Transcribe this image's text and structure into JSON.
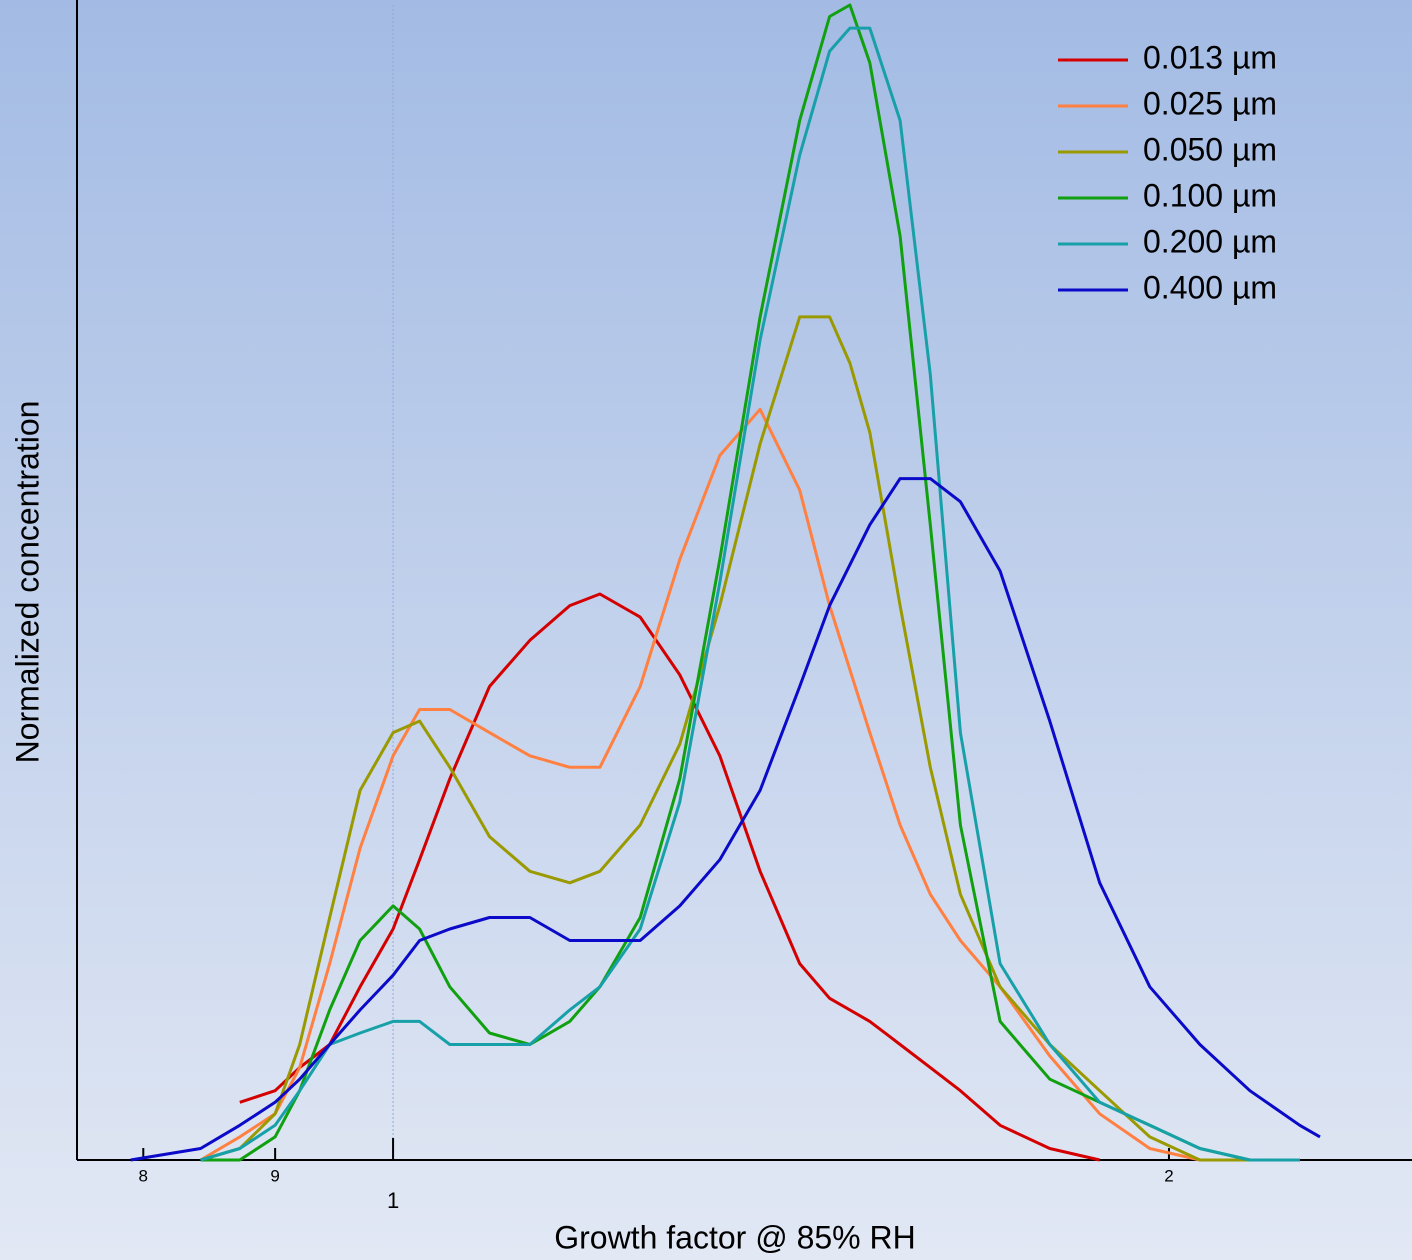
{
  "chart_data": {
    "type": "line",
    "x_label": "Growth factor @ 85% RH",
    "y_label": "Normalized concentration",
    "x_scale": "log",
    "xlim": [
      0.754,
      2.485
    ],
    "ylim": [
      0,
      1
    ],
    "xticks": [
      {
        "value": 0.8,
        "label": "8"
      },
      {
        "value": 0.9,
        "label": "9"
      },
      1,
      2
    ],
    "legend": "upper right",
    "series": [
      {
        "name": "0.013 µm",
        "color": "#d40000",
        "x": [
          0.872,
          0.9,
          0.92,
          0.945,
          0.971,
          1.0,
          1.024,
          1.052,
          1.09,
          1.13,
          1.171,
          1.203,
          1.247,
          1.292,
          1.339,
          1.388,
          1.438,
          1.477,
          1.531,
          1.573,
          1.616,
          1.66,
          1.72,
          1.798,
          1.88
        ],
        "values": [
          0.05,
          0.06,
          0.08,
          0.1,
          0.15,
          0.2,
          0.26,
          0.33,
          0.41,
          0.45,
          0.48,
          0.49,
          0.47,
          0.42,
          0.35,
          0.25,
          0.17,
          0.14,
          0.12,
          0.1,
          0.08,
          0.06,
          0.03,
          0.01,
          0
        ]
      },
      {
        "name": "0.025 µm",
        "color": "#ff8040",
        "x": [
          0.842,
          0.872,
          0.9,
          0.92,
          0.945,
          0.971,
          1.0,
          1.024,
          1.052,
          1.09,
          1.13,
          1.171,
          1.203,
          1.247,
          1.292,
          1.339,
          1.388,
          1.438,
          1.477,
          1.531,
          1.573,
          1.616,
          1.66,
          1.72,
          1.798,
          1.88,
          1.966,
          2.056
        ],
        "values": [
          0,
          0.02,
          0.04,
          0.08,
          0.17,
          0.27,
          0.35,
          0.39,
          0.39,
          0.37,
          0.35,
          0.34,
          0.34,
          0.41,
          0.52,
          0.61,
          0.65,
          0.58,
          0.48,
          0.37,
          0.29,
          0.23,
          0.19,
          0.15,
          0.09,
          0.04,
          0.01,
          0
        ]
      },
      {
        "name": "0.050 µm",
        "color": "#9a9a00",
        "x": [
          0.842,
          0.872,
          0.9,
          0.92,
          0.945,
          0.971,
          1.0,
          1.024,
          1.052,
          1.09,
          1.13,
          1.171,
          1.203,
          1.247,
          1.292,
          1.339,
          1.388,
          1.438,
          1.477,
          1.504,
          1.531,
          1.573,
          1.616,
          1.66,
          1.72,
          1.798,
          1.88,
          1.966,
          2.056,
          2.15
        ],
        "values": [
          0,
          0.01,
          0.04,
          0.1,
          0.21,
          0.32,
          0.37,
          0.38,
          0.34,
          0.28,
          0.25,
          0.24,
          0.25,
          0.29,
          0.36,
          0.48,
          0.62,
          0.73,
          0.73,
          0.69,
          0.63,
          0.48,
          0.34,
          0.23,
          0.15,
          0.1,
          0.06,
          0.02,
          0.0,
          0
        ]
      },
      {
        "name": "0.100 µm",
        "color": "#10a010",
        "x": [
          0.842,
          0.872,
          0.9,
          0.92,
          0.945,
          0.971,
          1.0,
          1.024,
          1.052,
          1.09,
          1.13,
          1.171,
          1.203,
          1.247,
          1.292,
          1.339,
          1.388,
          1.438,
          1.477,
          1.504,
          1.531,
          1.573,
          1.616,
          1.66,
          1.72,
          1.798,
          1.88,
          1.966,
          2.056,
          2.15,
          2.248
        ],
        "values": [
          0,
          0.0,
          0.02,
          0.06,
          0.13,
          0.19,
          0.22,
          0.2,
          0.15,
          0.11,
          0.1,
          0.12,
          0.15,
          0.21,
          0.33,
          0.52,
          0.73,
          0.9,
          0.99,
          1.0,
          0.95,
          0.8,
          0.55,
          0.29,
          0.12,
          0.07,
          0.05,
          0.03,
          0.01,
          0,
          0
        ]
      },
      {
        "name": "0.200 µm",
        "color": "#18a0a8",
        "x": [
          0.842,
          0.872,
          0.9,
          0.92,
          0.945,
          0.971,
          1.0,
          1.024,
          1.052,
          1.09,
          1.13,
          1.171,
          1.203,
          1.247,
          1.292,
          1.339,
          1.388,
          1.438,
          1.477,
          1.504,
          1.531,
          1.573,
          1.616,
          1.66,
          1.72,
          1.798,
          1.88,
          1.966,
          2.056,
          2.15,
          2.248
        ],
        "values": [
          0,
          0.01,
          0.03,
          0.06,
          0.1,
          0.11,
          0.12,
          0.12,
          0.1,
          0.1,
          0.1,
          0.13,
          0.15,
          0.2,
          0.31,
          0.5,
          0.71,
          0.87,
          0.96,
          0.98,
          0.98,
          0.9,
          0.68,
          0.37,
          0.17,
          0.1,
          0.05,
          0.03,
          0.01,
          0,
          0
        ]
      },
      {
        "name": "0.400 µm",
        "color": "#0a0ac8",
        "x": [
          0.791,
          0.842,
          0.872,
          0.9,
          0.92,
          0.945,
          0.971,
          1.0,
          1.024,
          1.052,
          1.09,
          1.13,
          1.171,
          1.203,
          1.247,
          1.292,
          1.339,
          1.388,
          1.438,
          1.477,
          1.531,
          1.573,
          1.616,
          1.66,
          1.72,
          1.798,
          1.88,
          1.966,
          2.056,
          2.15,
          2.248,
          2.289
        ],
        "values": [
          0.0,
          0.01,
          0.03,
          0.05,
          0.07,
          0.1,
          0.13,
          0.16,
          0.19,
          0.2,
          0.21,
          0.21,
          0.19,
          0.19,
          0.19,
          0.22,
          0.26,
          0.32,
          0.41,
          0.48,
          0.55,
          0.59,
          0.59,
          0.57,
          0.51,
          0.38,
          0.24,
          0.15,
          0.1,
          0.06,
          0.03,
          0.02
        ]
      }
    ]
  }
}
